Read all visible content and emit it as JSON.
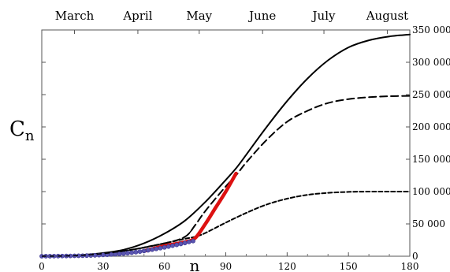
{
  "chart_data": {
    "type": "line",
    "ylabel_main": "C",
    "ylabel_sub": "n",
    "xlabel": "n",
    "xlim": [
      0,
      180
    ],
    "ylim": [
      0,
      350000
    ],
    "x_ticks": [
      {
        "value": 0,
        "label": "0"
      },
      {
        "value": 30,
        "label": "30"
      },
      {
        "value": 60,
        "label": "60"
      },
      {
        "value": 90,
        "label": "90"
      },
      {
        "value": 120,
        "label": "120"
      },
      {
        "value": 150,
        "label": "150"
      },
      {
        "value": 180,
        "label": "180"
      }
    ],
    "y_ticks": [
      {
        "value": 0,
        "label": "0"
      },
      {
        "value": 50000,
        "label": "50 000"
      },
      {
        "value": 100000,
        "label": "100 000"
      },
      {
        "value": 150000,
        "label": "150 000"
      },
      {
        "value": 200000,
        "label": "200 000"
      },
      {
        "value": 250000,
        "label": "250 000"
      },
      {
        "value": 300000,
        "label": "300 000"
      },
      {
        "value": 350000,
        "label": "350 000"
      }
    ],
    "months": [
      {
        "label": "March",
        "x": 16
      },
      {
        "label": "April",
        "x": 47
      },
      {
        "label": "May",
        "x": 77
      },
      {
        "label": "June",
        "x": 108
      },
      {
        "label": "July",
        "x": 138
      },
      {
        "label": "August",
        "x": 169
      }
    ],
    "series": [
      {
        "style": "solid",
        "color": "#000000",
        "x": [
          0,
          10,
          20,
          30,
          40,
          50,
          60,
          70,
          80,
          90,
          95,
          100,
          110,
          120,
          130,
          140,
          150,
          160,
          170,
          180
        ],
        "y": [
          0,
          500,
          2000,
          5000,
          10000,
          20000,
          35000,
          55000,
          84000,
          118000,
          136000,
          157000,
          200000,
          240000,
          275000,
          303000,
          323000,
          334000,
          340000,
          343000
        ]
      },
      {
        "style": "dashed",
        "color": "#000000",
        "x": [
          0,
          20,
          40,
          60,
          70,
          75,
          80,
          90,
          95,
          100,
          110,
          120,
          130,
          140,
          150,
          160,
          170,
          180
        ],
        "y": [
          0,
          1500,
          8000,
          20000,
          30000,
          48000,
          70000,
          108000,
          125000,
          145000,
          180000,
          208000,
          225000,
          237000,
          243000,
          246000,
          247500,
          248000
        ]
      },
      {
        "style": "dotted",
        "color": "#000000",
        "x": [
          0,
          20,
          40,
          60,
          70,
          75,
          80,
          90,
          100,
          110,
          120,
          130,
          140,
          150,
          160,
          170,
          180
        ],
        "y": [
          0,
          1500,
          8000,
          20000,
          27000,
          30000,
          36000,
          52000,
          67000,
          80000,
          89000,
          95000,
          98000,
          99500,
          100000,
          100000,
          100000
        ]
      },
      {
        "style": "solid-thick",
        "color": "#dd1111",
        "x": [
          50,
          60,
          70,
          75,
          80,
          85,
          90,
          95
        ],
        "y": [
          8000,
          16000,
          22000,
          28000,
          50000,
          75000,
          100000,
          128000
        ]
      }
    ],
    "points": {
      "color": "#5a55b0",
      "x": [
        0,
        2,
        4,
        6,
        8,
        10,
        12,
        14,
        16,
        18,
        20,
        22,
        24,
        26,
        28,
        30,
        32,
        34,
        36,
        38,
        40,
        42,
        44,
        46,
        48,
        50,
        52,
        54,
        56,
        58,
        60,
        62,
        64,
        66,
        68,
        70,
        72,
        74
      ],
      "y": [
        0,
        50,
        100,
        150,
        200,
        300,
        400,
        500,
        600,
        700,
        800,
        1000,
        1200,
        1400,
        1700,
        2000,
        2300,
        2700,
        3100,
        3600,
        4200,
        4800,
        5500,
        6300,
        7200,
        8100,
        9200,
        10300,
        11400,
        12500,
        13700,
        15000,
        16300,
        17600,
        19000,
        20500,
        22100,
        23500
      ]
    }
  }
}
